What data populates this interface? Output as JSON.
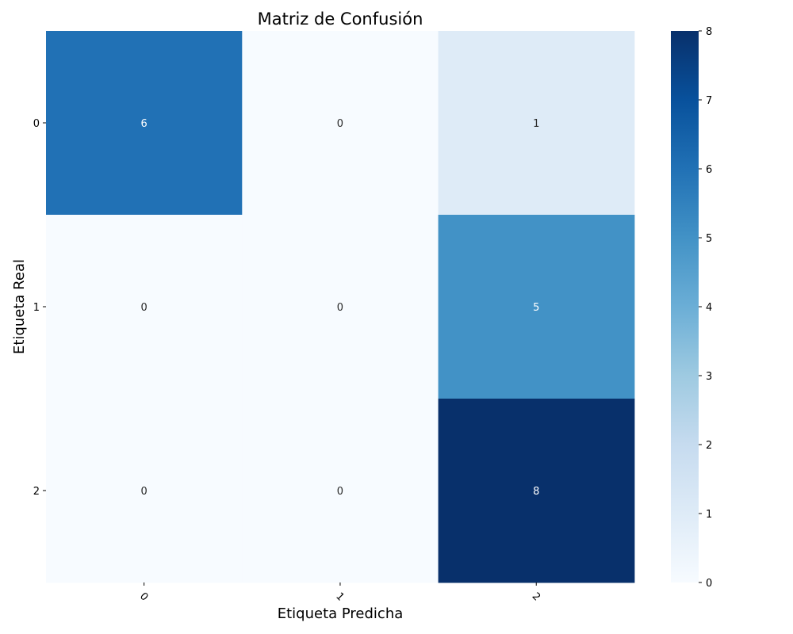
{
  "chart_data": {
    "type": "heatmap",
    "title": "Matriz de Confusión",
    "xlabel": "Etiqueta Predicha",
    "ylabel": "Etiqueta Real",
    "x_categories": [
      "0",
      "1",
      "2"
    ],
    "y_categories": [
      "0",
      "1",
      "2"
    ],
    "values": [
      [
        6,
        0,
        1
      ],
      [
        0,
        0,
        5
      ],
      [
        0,
        0,
        8
      ]
    ],
    "colorbar": {
      "range": [
        0,
        8
      ],
      "ticks": [
        "0",
        "1",
        "2",
        "3",
        "4",
        "5",
        "6",
        "7",
        "8"
      ],
      "colormap": "Blues"
    },
    "annotations": true
  }
}
